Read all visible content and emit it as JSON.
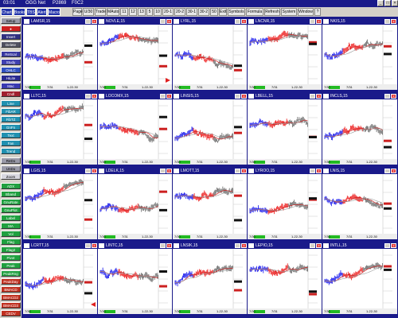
{
  "app": {
    "title_segments": [
      "03:01",
      "OGG Net",
      "P2869",
      "F0C2"
    ],
    "window_buttons": [
      "_",
      "□",
      "×"
    ]
  },
  "menubar": {
    "left_buttons": [
      "Chart",
      "Books",
      "TBS",
      "Alert",
      "Macro"
    ],
    "right_tools": [
      "Page",
      "U/30",
      "Trade",
      "MAuto",
      "11",
      "12",
      "13",
      "5",
      "10",
      "20-1",
      "20-2",
      "30-1",
      "30-2",
      "50",
      "Exit",
      "Symbols",
      "Formula",
      "Refresh",
      "System",
      "Window",
      "?"
    ]
  },
  "toolbar": {
    "items": [
      {
        "label": "Setup",
        "color": "#9a9aa8"
      },
      {
        "label": "●",
        "color": "#cc2020"
      },
      {
        "label": "Insert",
        "color": "#303080"
      },
      {
        "label": "Delete",
        "color": "#505060"
      },
      {
        "label": "ReScal",
        "color": "#3838a0"
      },
      {
        "label": "Study",
        "color": "#4040b0"
      },
      {
        "label": "OHLC",
        "color": "#3050c0"
      },
      {
        "label": "HiLite",
        "color": "#2a2a90"
      },
      {
        "label": "Mac",
        "color": "#3a3ab0"
      },
      {
        "label": "Cndl",
        "color": "#a02030"
      },
      {
        "label": "Line",
        "color": "#2090b0"
      },
      {
        "label": "FibAR",
        "color": "#2090b0"
      },
      {
        "label": "FibTZ",
        "color": "#2090b0"
      },
      {
        "label": "GnFn",
        "color": "#2090b0"
      },
      {
        "label": "Text",
        "color": "#2090b0"
      },
      {
        "label": "Fan",
        "color": "#2090b0"
      },
      {
        "label": "Trend",
        "color": "#2090b0"
      },
      {
        "label": "ReDo",
        "color": "#9a9aa8"
      },
      {
        "label": "UnDo",
        "color": "#9a9aa8"
      },
      {
        "label": "Zoom",
        "color": "#d8d8e0"
      },
      {
        "label": "ADX",
        "color": "#20a040"
      },
      {
        "label": "Bband",
        "color": "#20a040"
      },
      {
        "label": "GnuRate",
        "color": "#20a040"
      },
      {
        "label": "GnuPlot",
        "color": "#20a040"
      },
      {
        "label": "Label",
        "color": "#20a040"
      },
      {
        "label": "MA",
        "color": "#20a040"
      },
      {
        "label": "Vol",
        "color": "#20a040"
      },
      {
        "label": "Flag",
        "color": "#20a040"
      },
      {
        "label": "Flag2",
        "color": "#20a040"
      },
      {
        "label": "Pivot",
        "color": "#20a040"
      },
      {
        "label": "Peak",
        "color": "#20a040"
      },
      {
        "label": "PeakRng",
        "color": "#20a040"
      },
      {
        "label": "PeakDay",
        "color": "#c03020"
      },
      {
        "label": "BMACD",
        "color": "#c03020"
      },
      {
        "label": "BMACD2",
        "color": "#c03020"
      },
      {
        "label": "BMACD3",
        "color": "#c03020"
      },
      {
        "label": "CEDV",
        "color": "#c03020"
      }
    ]
  },
  "panels": [
    {
      "title": "LAMSR,15"
    },
    {
      "title": "NOVLE,15"
    },
    {
      "title": "LYRL,15"
    },
    {
      "title": "LNCNR,15"
    },
    {
      "title": "NKIS,15"
    },
    {
      "title": "LLTC,15"
    },
    {
      "title": "LOCOMX,15"
    },
    {
      "title": "LINSIS,15"
    },
    {
      "title": "LBELL,15"
    },
    {
      "title": "INCLS,15"
    },
    {
      "title": "LGIS,15"
    },
    {
      "title": "LDELK,15"
    },
    {
      "title": "LMOTT,15"
    },
    {
      "title": "LYROO,15"
    },
    {
      "title": "LNIS,15"
    },
    {
      "title": "LCRTT,15"
    },
    {
      "title": "LINTC,15"
    },
    {
      "title": "LNSIK,15"
    },
    {
      "title": "LEPIO,15"
    },
    {
      "title": "INTLL,15"
    }
  ],
  "panel_footer": {
    "left": "7/30",
    "mid": "7/31",
    "right": "1-22-30"
  },
  "colors": {
    "up": "#2a2aee",
    "down": "#ee2a2a",
    "neutral": "#777777",
    "ma": "#cc2222",
    "ma2": "#999999"
  }
}
